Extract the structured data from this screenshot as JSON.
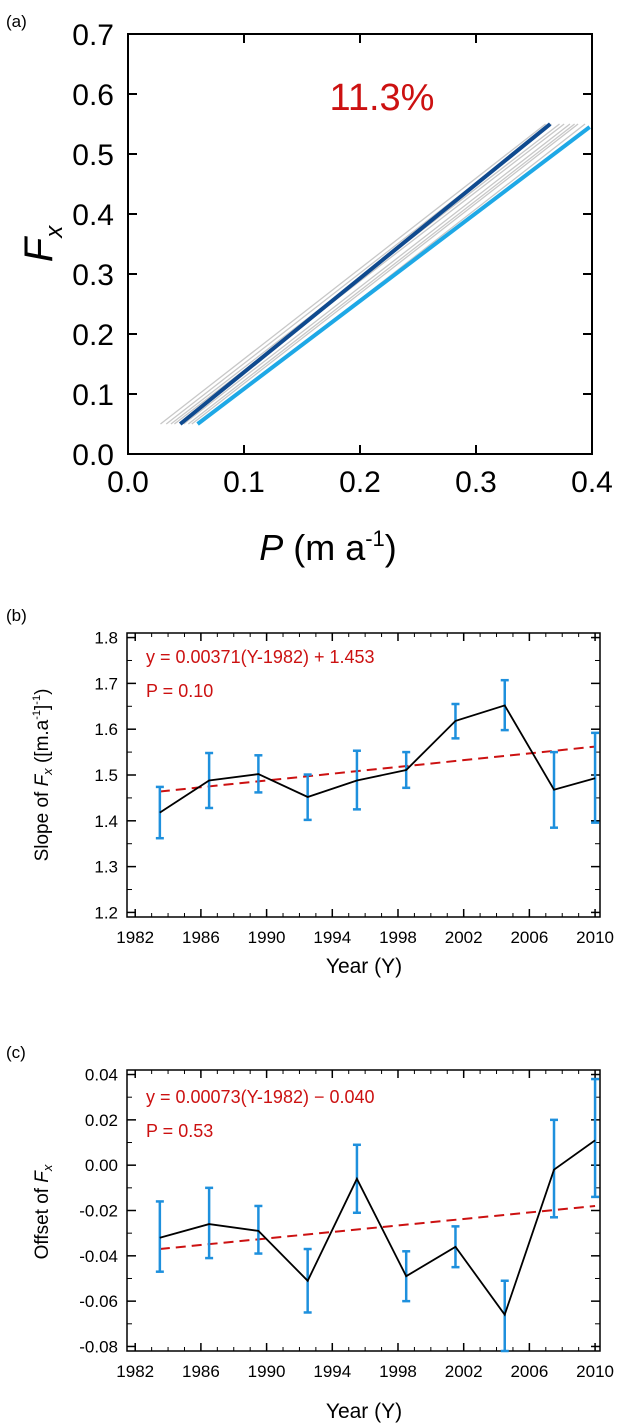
{
  "colors": {
    "axis": "#000000",
    "red": "#cc1111",
    "dark_blue": "#0f4a8f",
    "light_blue": "#1ea8e6",
    "gray": "#c8c8c8",
    "black_line": "#000000",
    "error_bar": "#1e90dd"
  },
  "chart_data": [
    {
      "id": "a",
      "panel_label": "(a)",
      "type": "line",
      "xlabel": "P",
      "xlabel_unit_prefix": "(m a",
      "xlabel_unit_exp": "-1",
      "xlabel_unit_suffix": ")",
      "ylabel": "F",
      "ylabel_sub": "x",
      "xlim": [
        0.0,
        0.4
      ],
      "ylim": [
        0.0,
        0.7
      ],
      "xticks": [
        "0.0",
        "0.1",
        "0.2",
        "0.3",
        "0.4"
      ],
      "yticks": [
        "0.0",
        "0.1",
        "0.2",
        "0.3",
        "0.4",
        "0.5",
        "0.6",
        "0.7"
      ],
      "annotation": "11.3%",
      "series": [
        {
          "x": [
            0.028,
            0.36
          ],
          "y": [
            0.05,
            0.55
          ]
        },
        {
          "x": [
            0.033,
            0.365
          ],
          "y": [
            0.05,
            0.55
          ]
        },
        {
          "x": [
            0.037,
            0.372
          ],
          "y": [
            0.05,
            0.55
          ]
        },
        {
          "x": [
            0.04,
            0.376
          ],
          "y": [
            0.05,
            0.55
          ]
        },
        {
          "x": [
            0.048,
            0.381
          ],
          "y": [
            0.05,
            0.55
          ]
        },
        {
          "x": [
            0.052,
            0.385
          ],
          "y": [
            0.05,
            0.55
          ]
        },
        {
          "x": [
            0.055,
            0.388
          ],
          "y": [
            0.05,
            0.55
          ]
        },
        {
          "x": [
            0.062,
            0.394
          ],
          "y": [
            0.05,
            0.55
          ]
        },
        {
          "x": [
            0.045,
            0.364
          ],
          "y": [
            0.05,
            0.55
          ]
        },
        {
          "x": [
            0.06,
            0.398
          ],
          "y": [
            0.05,
            0.545
          ]
        }
      ]
    },
    {
      "id": "b",
      "panel_label": "(b)",
      "type": "line",
      "xlabel": "Year (Y)",
      "ylabel": "Slope of",
      "ylabel_var": "F",
      "ylabel_sub": "x",
      "ylabel_unit": "([m.a",
      "ylabel_unit_exp": "-1",
      "ylabel_unit_end": "]",
      "ylabel_unit_exp2": "-1",
      "ylabel_unit_close": ")",
      "xlim": [
        1981.5,
        2010.3
      ],
      "ylim": [
        1.19,
        1.81
      ],
      "xticks": [
        "1982",
        "1986",
        "1990",
        "1994",
        "1998",
        "2002",
        "2006",
        "2010"
      ],
      "xtick_values": [
        1982,
        1986,
        1990,
        1994,
        1998,
        2002,
        2006,
        2010
      ],
      "yticks": [
        "1.2",
        "1.3",
        "1.4",
        "1.5",
        "1.6",
        "1.7",
        "1.8"
      ],
      "ytick_values": [
        1.2,
        1.3,
        1.4,
        1.5,
        1.6,
        1.7,
        1.8
      ],
      "equation": "y =  0.00371(Y-1982) + 1.453",
      "p_value": "P = 0.10",
      "x": [
        1983.5,
        1986.5,
        1989.5,
        1992.5,
        1995.5,
        1998.5,
        2001.5,
        2004.5,
        2007.5,
        2010
      ],
      "y": [
        1.418,
        1.488,
        1.502,
        1.452,
        1.488,
        1.511,
        1.618,
        1.652,
        1.468,
        1.493
      ],
      "err_low": [
        1.362,
        1.428,
        1.462,
        1.402,
        1.425,
        1.472,
        1.58,
        1.598,
        1.385,
        1.396
      ],
      "err_high": [
        1.474,
        1.548,
        1.543,
        1.501,
        1.553,
        1.55,
        1.655,
        1.707,
        1.55,
        1.592
      ],
      "trend": {
        "x": [
          1983.5,
          2010
        ],
        "y": [
          1.464,
          1.562
        ]
      }
    },
    {
      "id": "c",
      "panel_label": "(c)",
      "type": "line",
      "xlabel": "Year (Y)",
      "ylabel": "Offset of",
      "ylabel_var": "F",
      "ylabel_sub": "x",
      "xlim": [
        1981.5,
        2010.3
      ],
      "ylim": [
        -0.082,
        0.042
      ],
      "xticks": [
        "1982",
        "1986",
        "1990",
        "1994",
        "1998",
        "2002",
        "2006",
        "2010"
      ],
      "xtick_values": [
        1982,
        1986,
        1990,
        1994,
        1998,
        2002,
        2006,
        2010
      ],
      "yticks": [
        "-0.08",
        "-0.06",
        "-0.04",
        "-0.02",
        "0.00",
        "0.02",
        "0.04"
      ],
      "ytick_values": [
        -0.08,
        -0.06,
        -0.04,
        -0.02,
        0.0,
        0.02,
        0.04
      ],
      "equation": "y =  0.00073(Y-1982) − 0.040",
      "p_value": "P = 0.53",
      "x": [
        1983.5,
        1986.5,
        1989.5,
        1992.5,
        1995.5,
        1998.5,
        2001.5,
        2004.5,
        2007.5,
        2010
      ],
      "y": [
        -0.032,
        -0.026,
        -0.029,
        -0.051,
        -0.006,
        -0.049,
        -0.036,
        -0.066,
        -0.002,
        0.011
      ],
      "err_low": [
        -0.047,
        -0.041,
        -0.039,
        -0.065,
        -0.021,
        -0.06,
        -0.045,
        -0.082,
        -0.023,
        -0.014
      ],
      "err_high": [
        -0.016,
        -0.01,
        -0.018,
        -0.037,
        0.009,
        -0.038,
        -0.027,
        -0.051,
        0.02,
        0.038
      ],
      "trend": {
        "x": [
          1983.5,
          2010
        ],
        "y": [
          -0.037,
          -0.018
        ]
      }
    }
  ]
}
